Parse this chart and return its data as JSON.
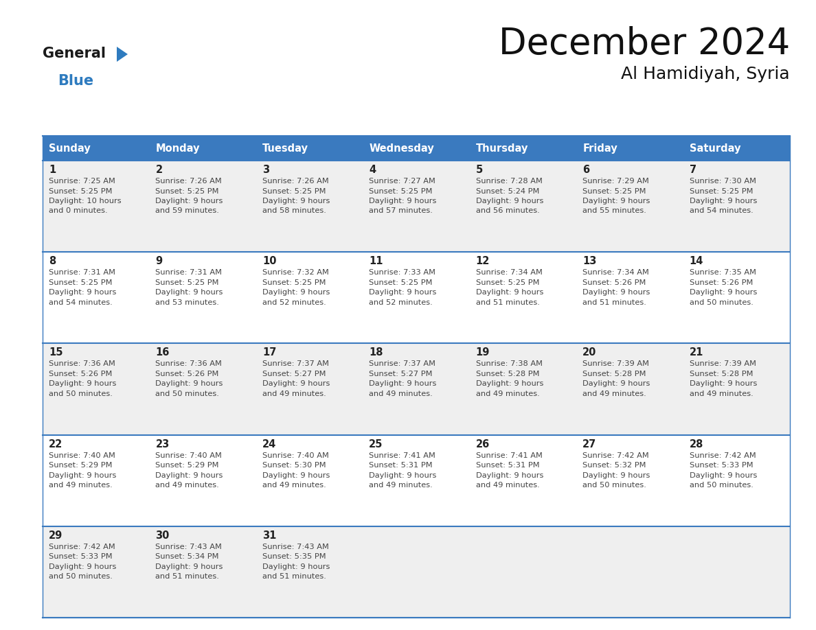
{
  "title": "December 2024",
  "subtitle": "Al Hamidiyah, Syria",
  "days_of_week": [
    "Sunday",
    "Monday",
    "Tuesday",
    "Wednesday",
    "Thursday",
    "Friday",
    "Saturday"
  ],
  "header_bg": "#3a7abf",
  "header_text": "#ffffff",
  "row_bg_odd": "#efefef",
  "row_bg_even": "#ffffff",
  "cell_border": "#3a7abf",
  "day_number_color": "#222222",
  "cell_text_color": "#444444",
  "logo_black": "#1a1a1a",
  "logo_blue": "#2e7bbf",
  "calendar": [
    [
      {
        "day": 1,
        "sunrise": "7:25 AM",
        "sunset": "5:25 PM",
        "dl1": "Daylight: 10 hours",
        "dl2": "and 0 minutes."
      },
      {
        "day": 2,
        "sunrise": "7:26 AM",
        "sunset": "5:25 PM",
        "dl1": "Daylight: 9 hours",
        "dl2": "and 59 minutes."
      },
      {
        "day": 3,
        "sunrise": "7:26 AM",
        "sunset": "5:25 PM",
        "dl1": "Daylight: 9 hours",
        "dl2": "and 58 minutes."
      },
      {
        "day": 4,
        "sunrise": "7:27 AM",
        "sunset": "5:25 PM",
        "dl1": "Daylight: 9 hours",
        "dl2": "and 57 minutes."
      },
      {
        "day": 5,
        "sunrise": "7:28 AM",
        "sunset": "5:24 PM",
        "dl1": "Daylight: 9 hours",
        "dl2": "and 56 minutes."
      },
      {
        "day": 6,
        "sunrise": "7:29 AM",
        "sunset": "5:25 PM",
        "dl1": "Daylight: 9 hours",
        "dl2": "and 55 minutes."
      },
      {
        "day": 7,
        "sunrise": "7:30 AM",
        "sunset": "5:25 PM",
        "dl1": "Daylight: 9 hours",
        "dl2": "and 54 minutes."
      }
    ],
    [
      {
        "day": 8,
        "sunrise": "7:31 AM",
        "sunset": "5:25 PM",
        "dl1": "Daylight: 9 hours",
        "dl2": "and 54 minutes."
      },
      {
        "day": 9,
        "sunrise": "7:31 AM",
        "sunset": "5:25 PM",
        "dl1": "Daylight: 9 hours",
        "dl2": "and 53 minutes."
      },
      {
        "day": 10,
        "sunrise": "7:32 AM",
        "sunset": "5:25 PM",
        "dl1": "Daylight: 9 hours",
        "dl2": "and 52 minutes."
      },
      {
        "day": 11,
        "sunrise": "7:33 AM",
        "sunset": "5:25 PM",
        "dl1": "Daylight: 9 hours",
        "dl2": "and 52 minutes."
      },
      {
        "day": 12,
        "sunrise": "7:34 AM",
        "sunset": "5:25 PM",
        "dl1": "Daylight: 9 hours",
        "dl2": "and 51 minutes."
      },
      {
        "day": 13,
        "sunrise": "7:34 AM",
        "sunset": "5:26 PM",
        "dl1": "Daylight: 9 hours",
        "dl2": "and 51 minutes."
      },
      {
        "day": 14,
        "sunrise": "7:35 AM",
        "sunset": "5:26 PM",
        "dl1": "Daylight: 9 hours",
        "dl2": "and 50 minutes."
      }
    ],
    [
      {
        "day": 15,
        "sunrise": "7:36 AM",
        "sunset": "5:26 PM",
        "dl1": "Daylight: 9 hours",
        "dl2": "and 50 minutes."
      },
      {
        "day": 16,
        "sunrise": "7:36 AM",
        "sunset": "5:26 PM",
        "dl1": "Daylight: 9 hours",
        "dl2": "and 50 minutes."
      },
      {
        "day": 17,
        "sunrise": "7:37 AM",
        "sunset": "5:27 PM",
        "dl1": "Daylight: 9 hours",
        "dl2": "and 49 minutes."
      },
      {
        "day": 18,
        "sunrise": "7:37 AM",
        "sunset": "5:27 PM",
        "dl1": "Daylight: 9 hours",
        "dl2": "and 49 minutes."
      },
      {
        "day": 19,
        "sunrise": "7:38 AM",
        "sunset": "5:28 PM",
        "dl1": "Daylight: 9 hours",
        "dl2": "and 49 minutes."
      },
      {
        "day": 20,
        "sunrise": "7:39 AM",
        "sunset": "5:28 PM",
        "dl1": "Daylight: 9 hours",
        "dl2": "and 49 minutes."
      },
      {
        "day": 21,
        "sunrise": "7:39 AM",
        "sunset": "5:28 PM",
        "dl1": "Daylight: 9 hours",
        "dl2": "and 49 minutes."
      }
    ],
    [
      {
        "day": 22,
        "sunrise": "7:40 AM",
        "sunset": "5:29 PM",
        "dl1": "Daylight: 9 hours",
        "dl2": "and 49 minutes."
      },
      {
        "day": 23,
        "sunrise": "7:40 AM",
        "sunset": "5:29 PM",
        "dl1": "Daylight: 9 hours",
        "dl2": "and 49 minutes."
      },
      {
        "day": 24,
        "sunrise": "7:40 AM",
        "sunset": "5:30 PM",
        "dl1": "Daylight: 9 hours",
        "dl2": "and 49 minutes."
      },
      {
        "day": 25,
        "sunrise": "7:41 AM",
        "sunset": "5:31 PM",
        "dl1": "Daylight: 9 hours",
        "dl2": "and 49 minutes."
      },
      {
        "day": 26,
        "sunrise": "7:41 AM",
        "sunset": "5:31 PM",
        "dl1": "Daylight: 9 hours",
        "dl2": "and 49 minutes."
      },
      {
        "day": 27,
        "sunrise": "7:42 AM",
        "sunset": "5:32 PM",
        "dl1": "Daylight: 9 hours",
        "dl2": "and 50 minutes."
      },
      {
        "day": 28,
        "sunrise": "7:42 AM",
        "sunset": "5:33 PM",
        "dl1": "Daylight: 9 hours",
        "dl2": "and 50 minutes."
      }
    ],
    [
      {
        "day": 29,
        "sunrise": "7:42 AM",
        "sunset": "5:33 PM",
        "dl1": "Daylight: 9 hours",
        "dl2": "and 50 minutes."
      },
      {
        "day": 30,
        "sunrise": "7:43 AM",
        "sunset": "5:34 PM",
        "dl1": "Daylight: 9 hours",
        "dl2": "and 51 minutes."
      },
      {
        "day": 31,
        "sunrise": "7:43 AM",
        "sunset": "5:35 PM",
        "dl1": "Daylight: 9 hours",
        "dl2": "and 51 minutes."
      },
      null,
      null,
      null,
      null
    ]
  ]
}
